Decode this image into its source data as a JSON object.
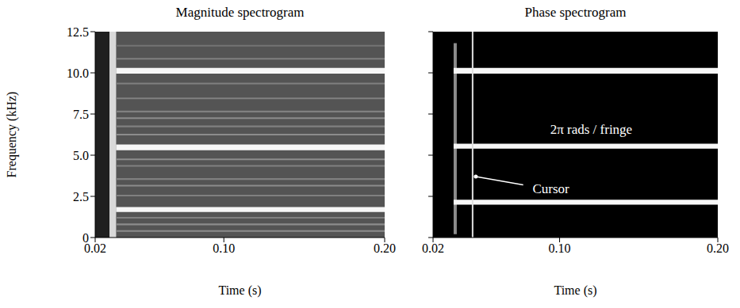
{
  "chart_data": [
    {
      "type": "heatmap",
      "title": "Magnitude spectrogram",
      "xlabel": "Time (s)",
      "ylabel": "Frequency (kHz)",
      "xlim": [
        0.02,
        0.2
      ],
      "xticks": [
        0.02,
        {
          "value": 0.1,
          "label": "0.10"
        },
        {
          "value": 0.2,
          "label": "0.20"
        }
      ],
      "ylim": [
        0,
        12.5
      ],
      "yticks": [
        0,
        2.5,
        {
          "value": 5,
          "label": "5.0"
        },
        7.5,
        {
          "value": 10,
          "label": "10.0"
        },
        12.5
      ],
      "zlim": [
        0,
        1
      ],
      "cells": [
        {
          "x": [
            0.02,
            0.029
          ],
          "y": [
            0,
            12.5
          ],
          "value": 0.12
        },
        {
          "x": [
            0.029,
            0.033
          ],
          "y": [
            0,
            12.5
          ],
          "value": 0.85
        },
        {
          "x": [
            0.033,
            0.2
          ],
          "y": [
            0,
            12.5
          ],
          "value": 0.33
        },
        {
          "x": [
            0.033,
            0.2
          ],
          "y": [
            0.35,
            0.45
          ],
          "value": 0.55
        },
        {
          "x": [
            0.033,
            0.2
          ],
          "y": [
            0.75,
            0.85
          ],
          "value": 0.55
        },
        {
          "x": [
            0.033,
            0.2
          ],
          "y": [
            1.15,
            1.25
          ],
          "value": 0.5
        },
        {
          "x": [
            0.033,
            0.2
          ],
          "y": [
            2.5,
            2.6
          ],
          "value": 0.5
        },
        {
          "x": [
            0.033,
            0.2
          ],
          "y": [
            3.1,
            3.2
          ],
          "value": 0.55
        },
        {
          "x": [
            0.033,
            0.2
          ],
          "y": [
            3.5,
            3.6
          ],
          "value": 0.5
        },
        {
          "x": [
            0.033,
            0.2
          ],
          "y": [
            4.3,
            4.4
          ],
          "value": 0.5
        },
        {
          "x": [
            0.033,
            0.2
          ],
          "y": [
            4.7,
            4.8
          ],
          "value": 0.55
        },
        {
          "x": [
            0.033,
            0.2
          ],
          "y": [
            6.2,
            6.3
          ],
          "value": 0.55
        },
        {
          "x": [
            0.033,
            0.2
          ],
          "y": [
            6.7,
            6.8
          ],
          "value": 0.5
        },
        {
          "x": [
            0.033,
            0.2
          ],
          "y": [
            7.2,
            7.3
          ],
          "value": 0.55
        },
        {
          "x": [
            0.033,
            0.2
          ],
          "y": [
            7.6,
            7.7
          ],
          "value": 0.5
        },
        {
          "x": [
            0.033,
            0.2
          ],
          "y": [
            8.4,
            8.5
          ],
          "value": 0.5
        },
        {
          "x": [
            0.033,
            0.2
          ],
          "y": [
            9.3,
            9.4
          ],
          "value": 0.5
        },
        {
          "x": [
            0.033,
            0.2
          ],
          "y": [
            10.8,
            10.9
          ],
          "value": 0.5
        },
        {
          "x": [
            0.033,
            0.2
          ],
          "y": [
            11.6,
            11.7
          ],
          "value": 0.45
        },
        {
          "x": [
            0.033,
            0.2
          ],
          "y": [
            1.55,
            1.85
          ],
          "value": 0.97
        },
        {
          "x": [
            0.033,
            0.2
          ],
          "y": [
            5.3,
            5.65
          ],
          "value": 0.97
        },
        {
          "x": [
            0.033,
            0.2
          ],
          "y": [
            9.95,
            10.3
          ],
          "value": 0.97
        }
      ]
    },
    {
      "type": "heatmap",
      "title": "Phase spectrogram",
      "xlabel": "Time (s)",
      "xlim": [
        0.02,
        0.2
      ],
      "xticks": [
        0.02,
        {
          "value": 0.1,
          "label": "0.10"
        },
        {
          "value": 0.2,
          "label": "0.20"
        }
      ],
      "ylim": [
        0,
        12.5
      ],
      "yticks": [
        0,
        2.5,
        5,
        7.5,
        10,
        12.5
      ],
      "tick_labels": "x",
      "zlim": [
        0,
        1
      ],
      "cells": [
        {
          "x": [
            0.02,
            0.2
          ],
          "y": [
            0,
            12.5
          ],
          "value": 0
        },
        {
          "x": [
            0.033,
            0.035
          ],
          "y": [
            0.2,
            11.8
          ],
          "value": 0.55
        },
        {
          "x": [
            0.033,
            0.2
          ],
          "y": [
            2.0,
            2.3
          ],
          "value": 0.97
        },
        {
          "x": [
            0.033,
            0.2
          ],
          "y": [
            5.4,
            5.7
          ],
          "value": 0.97
        },
        {
          "x": [
            0.033,
            0.2
          ],
          "y": [
            9.95,
            10.3
          ],
          "value": 0.97
        }
      ],
      "cursor": 0.045,
      "annotations": [
        {
          "text": "2π rads / fringe",
          "x": 0.12,
          "y": 6.6
        },
        {
          "text": "Cursor",
          "x": 0.0945,
          "y": 3.0,
          "arrow_from": [
            0.077,
            3.2
          ],
          "arrow_to": [
            0.047,
            3.7
          ]
        }
      ]
    }
  ]
}
